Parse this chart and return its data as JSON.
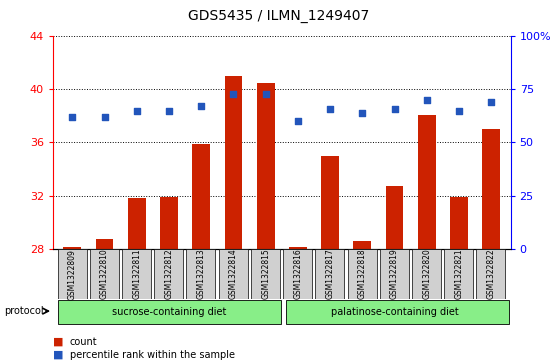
{
  "title": "GDS5435 / ILMN_1249407",
  "samples": [
    "GSM1322809",
    "GSM1322810",
    "GSM1322811",
    "GSM1322812",
    "GSM1322813",
    "GSM1322814",
    "GSM1322815",
    "GSM1322816",
    "GSM1322817",
    "GSM1322818",
    "GSM1322819",
    "GSM1322820",
    "GSM1322821",
    "GSM1322822"
  ],
  "counts": [
    28.1,
    28.7,
    31.8,
    31.9,
    35.9,
    41.0,
    40.5,
    28.1,
    35.0,
    28.6,
    32.7,
    38.1,
    31.9,
    37.0
  ],
  "percentiles": [
    62,
    62,
    65,
    65,
    67,
    73,
    73,
    60,
    66,
    64,
    66,
    70,
    65,
    69
  ],
  "ylim_left": [
    28,
    44
  ],
  "ylim_right": [
    0,
    100
  ],
  "yticks_left": [
    28,
    32,
    36,
    40,
    44
  ],
  "yticks_right": [
    0,
    25,
    50,
    75,
    100
  ],
  "ytick_labels_right": [
    "0",
    "25",
    "50",
    "75",
    "100%"
  ],
  "bar_color": "#cc2200",
  "dot_color": "#2255bb",
  "group1_label": "sucrose-containing diet",
  "group2_label": "palatinose-containing diet",
  "group1_count": 7,
  "group2_count": 7,
  "protocol_label": "protocol",
  "legend_bar_label": "count",
  "legend_dot_label": "percentile rank within the sample",
  "bar_width": 0.55,
  "group_color": "#88ee88",
  "tick_bg_color": "#d0d0d0"
}
